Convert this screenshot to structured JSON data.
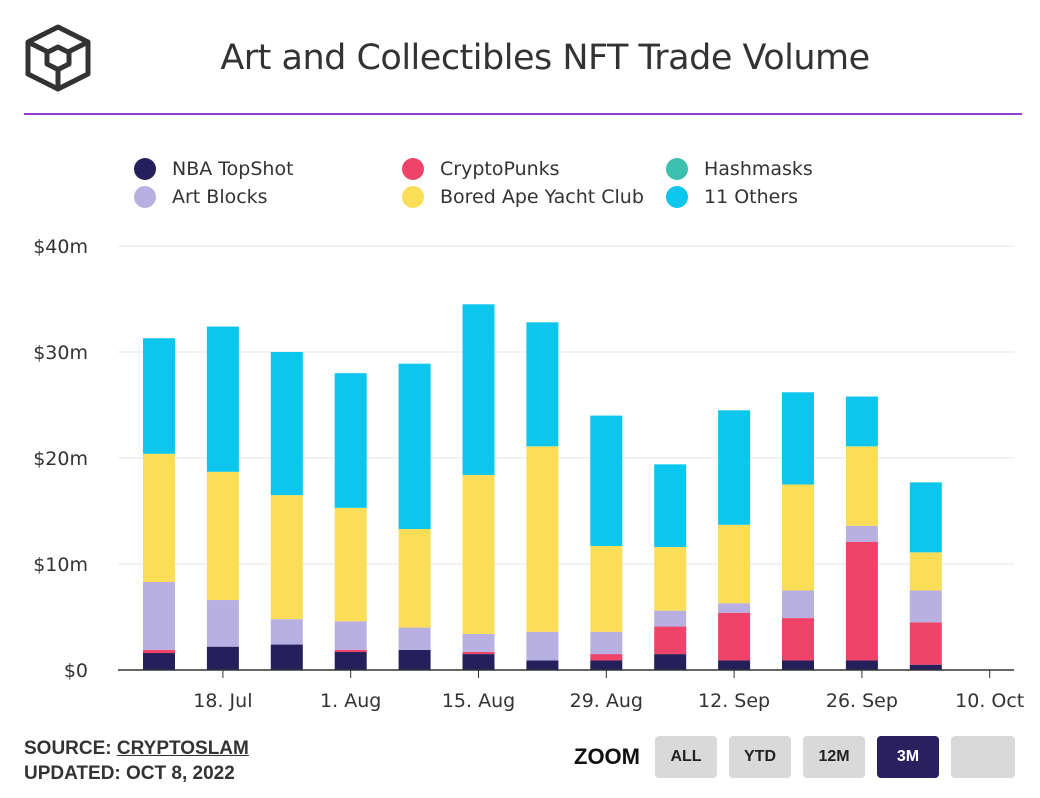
{
  "title": "Art and Collectibles NFT Trade Volume",
  "colors": {
    "accent_rule": "#8e3fd0",
    "grid": "#e6e6e6",
    "axis": "#333333"
  },
  "legend": [
    {
      "label": "NBA TopShot",
      "color": "#251f5c"
    },
    {
      "label": "Art Blocks",
      "color": "#b8b0e0"
    },
    {
      "label": "CryptoPunks",
      "color": "#ef4369"
    },
    {
      "label": "Bored Ape Yacht Club",
      "color": "#fbdd57"
    },
    {
      "label": "Hashmasks",
      "color": "#3cbfae"
    },
    {
      "label": "11 Others",
      "color": "#0cc6ee"
    }
  ],
  "chart_data": {
    "type": "bar",
    "stacked": true,
    "title": "Art and Collectibles NFT Trade Volume",
    "y_ticks": [
      "$0",
      "$10m",
      "$20m",
      "$30m",
      "$40m"
    ],
    "ylim": [
      0,
      40
    ],
    "y_unit": "$m",
    "x_tick_labels": [
      "18. Jul",
      "1. Aug",
      "15. Aug",
      "29. Aug",
      "12. Sep",
      "26. Sep",
      "10. Oct"
    ],
    "categories": [
      "2022-07-11",
      "2022-07-18",
      "2022-07-25",
      "2022-08-01",
      "2022-08-08",
      "2022-08-15",
      "2022-08-22",
      "2022-08-29",
      "2022-09-05",
      "2022-09-12",
      "2022-09-19",
      "2022-09-26",
      "2022-10-03"
    ],
    "series": [
      {
        "name": "NBA TopShot",
        "color": "#251f5c",
        "values": [
          1.6,
          2.2,
          2.4,
          1.7,
          1.9,
          1.5,
          0.9,
          0.9,
          1.5,
          0.9,
          0.9,
          0.9,
          0.5
        ]
      },
      {
        "name": "CryptoPunks",
        "color": "#ef4369",
        "values": [
          0.3,
          0.0,
          0.0,
          0.2,
          0.0,
          0.2,
          0.0,
          0.6,
          2.6,
          4.5,
          4.0,
          11.2,
          4.0
        ]
      },
      {
        "name": "Hashmasks",
        "color": "#3cbfae",
        "values": [
          0,
          0,
          0,
          0,
          0,
          0,
          0,
          0,
          0,
          0,
          0,
          0,
          0
        ]
      },
      {
        "name": "Art Blocks",
        "color": "#b8b0e0",
        "values": [
          6.4,
          4.4,
          2.4,
          2.7,
          2.1,
          1.7,
          2.7,
          2.1,
          1.5,
          0.9,
          2.6,
          1.5,
          3.0
        ]
      },
      {
        "name": "Bored Ape Yacht Club",
        "color": "#fbdd57",
        "values": [
          12.1,
          12.1,
          11.7,
          10.7,
          9.3,
          15.0,
          17.5,
          8.1,
          6.0,
          7.4,
          10.0,
          7.5,
          3.6
        ]
      },
      {
        "name": "11 Others",
        "color": "#0cc6ee",
        "values": [
          10.9,
          13.7,
          13.5,
          12.7,
          15.6,
          16.1,
          11.7,
          12.3,
          7.8,
          10.8,
          8.7,
          4.7,
          6.6
        ]
      }
    ],
    "grid": true,
    "legend_position": "top"
  },
  "footer": {
    "source_prefix": "SOURCE: ",
    "source_name": "CRYPTOSLAM",
    "updated": "UPDATED: OCT 8, 2022"
  },
  "zoom": {
    "label": "ZOOM",
    "buttons": [
      {
        "label": "ALL",
        "active": false
      },
      {
        "label": "YTD",
        "active": false
      },
      {
        "label": "12M",
        "active": false
      },
      {
        "label": "3M",
        "active": true
      },
      {
        "label": "",
        "active": false
      }
    ]
  }
}
